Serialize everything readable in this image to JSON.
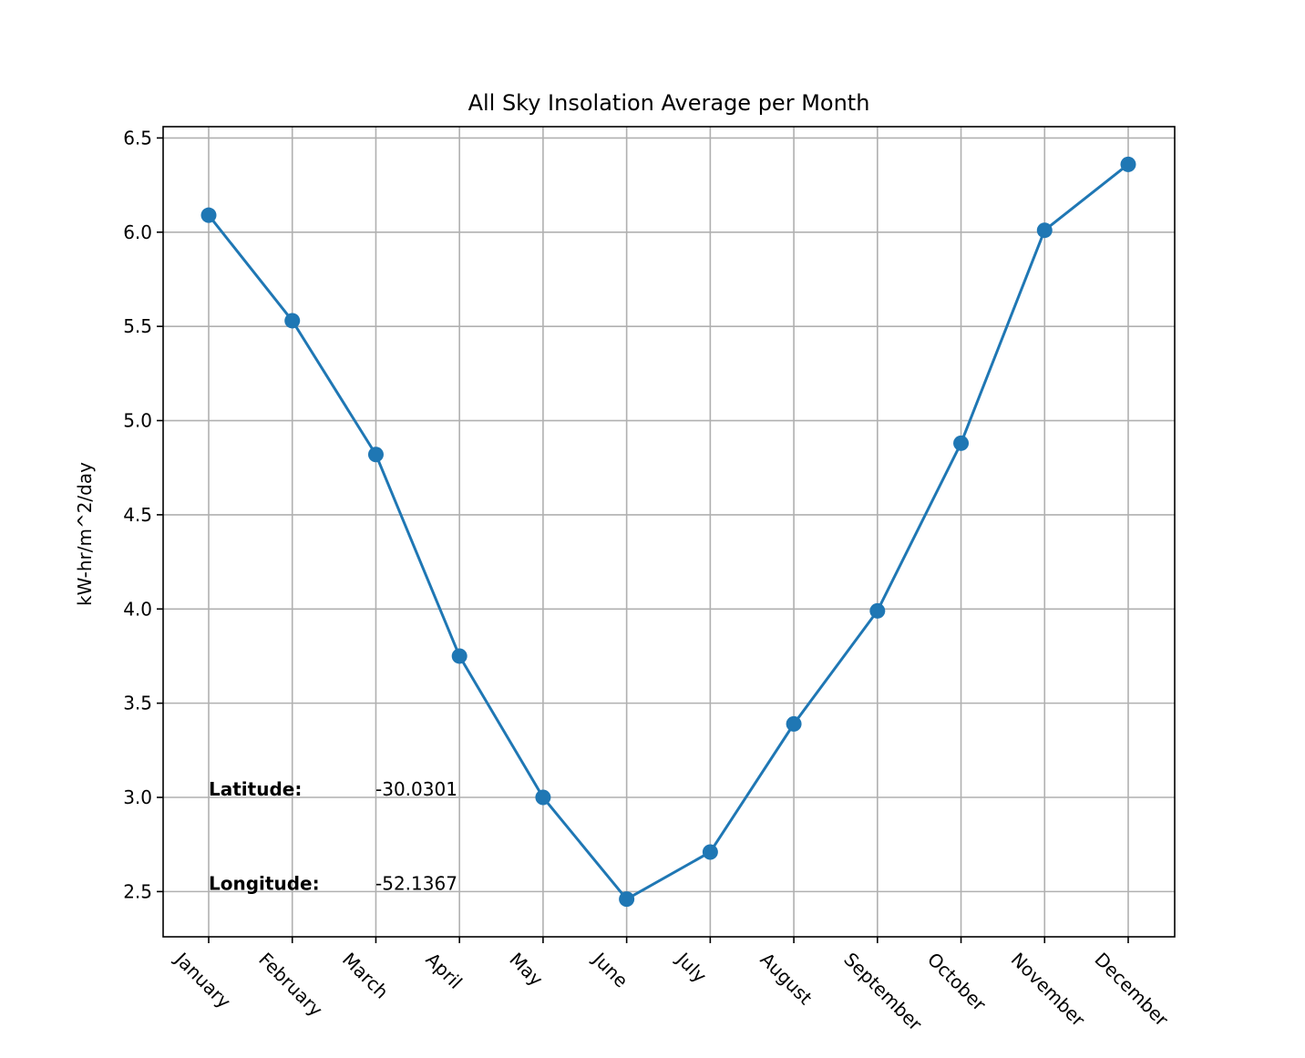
{
  "chart_data": {
    "type": "line",
    "title": "All Sky Insolation Average per Month",
    "xlabel": "",
    "ylabel": "kW-hr/m^2/day",
    "categories": [
      "January",
      "February",
      "March",
      "April",
      "May",
      "June",
      "July",
      "August",
      "September",
      "October",
      "November",
      "December"
    ],
    "series": [
      {
        "values": [
          6.09,
          5.53,
          4.82,
          3.75,
          3.0,
          2.46,
          2.71,
          3.39,
          3.99,
          4.88,
          6.01,
          6.36
        ]
      }
    ],
    "ylim": [
      2.26,
      6.56
    ],
    "yticks": [
      "2.5",
      "3.0",
      "3.5",
      "4.0",
      "4.5",
      "5.0",
      "5.5",
      "6.0",
      "6.5"
    ],
    "grid": true,
    "marker": "circle",
    "color": "#1f77b4",
    "annotations": [
      {
        "key": "Latitude:",
        "value": "-30.0301",
        "y": 3.0
      },
      {
        "key": "Longitude:",
        "value": "-52.1367",
        "y": 2.5
      }
    ]
  }
}
